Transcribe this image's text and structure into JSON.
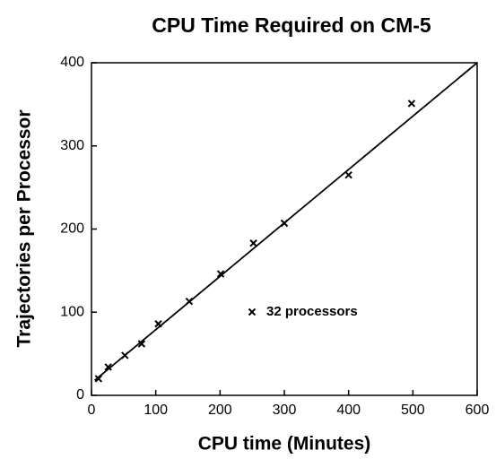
{
  "chart_data": {
    "type": "scatter",
    "title": "CPU Time Required on CM-5",
    "x_label": "CPU time (Minutes)",
    "y_label": "Trajectories per Processor",
    "series": [
      {
        "name": "32 processors",
        "color": "#000000",
        "x": [
          11,
          26,
          52,
          78,
          104,
          152,
          201,
          252,
          300,
          400,
          498
        ],
        "values": [
          20,
          34,
          48,
          62,
          86,
          113,
          146,
          183,
          207,
          265,
          351
        ]
      }
    ],
    "fit_line": {
      "x": [
        5,
        600
      ],
      "values": [
        18,
        400
      ]
    },
    "xlim": [
      0,
      600
    ],
    "xticks": [
      0,
      100,
      200,
      300,
      400,
      500,
      600
    ],
    "ylim": [
      0,
      400
    ],
    "yticks": [
      0,
      100,
      200,
      300,
      400
    ]
  }
}
